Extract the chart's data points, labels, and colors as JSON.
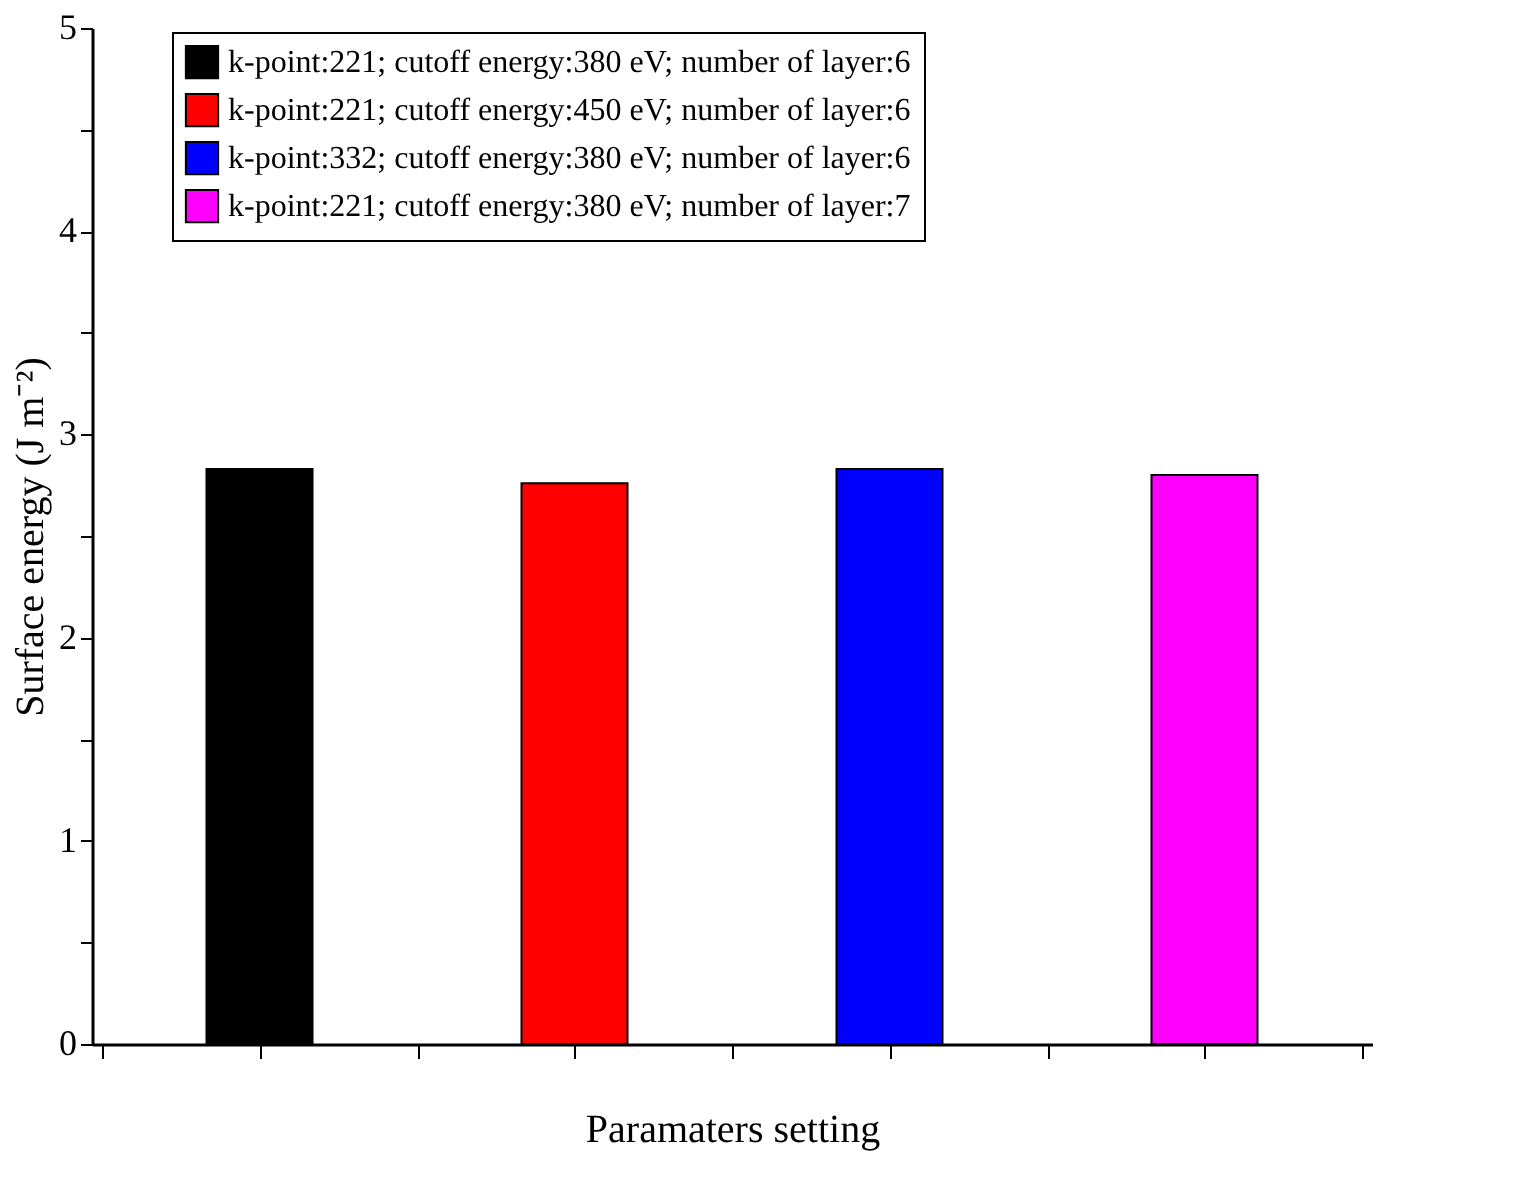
{
  "chart_data": {
    "type": "bar",
    "xlabel": "Paramaters setting",
    "ylabel": "Surface energy (J m⁻²)",
    "categories": [
      null,
      null,
      null,
      null
    ],
    "series": [
      {
        "name": "k-point:221; cutoff energy:380 eV; number of layer:6",
        "color": "#000000",
        "values": [
          2.83,
          null,
          null,
          null
        ]
      },
      {
        "name": "k-point:221; cutoff energy:450 eV; number of layer:6",
        "color": "#ff0000",
        "values": [
          null,
          2.76,
          null,
          null
        ]
      },
      {
        "name": "k-point:332; cutoff energy:380 eV; number of layer:6",
        "color": "#0000ff",
        "values": [
          null,
          null,
          2.83,
          null
        ]
      },
      {
        "name": "k-point:221; cutoff energy:380 eV; number of layer:7",
        "color": "#ff00ff",
        "values": [
          null,
          null,
          null,
          2.8
        ]
      }
    ],
    "ylim": [
      0,
      5
    ],
    "yticks": [
      0,
      {
        "value": 0.5,
        "label": null
      },
      1,
      {
        "value": 1.5,
        "label": null
      },
      2,
      {
        "value": 2.5,
        "label": null
      },
      3,
      {
        "value": 3.5,
        "label": null
      },
      4,
      {
        "value": 4.5,
        "label": null
      },
      5
    ],
    "grid": false,
    "legend": "top"
  }
}
